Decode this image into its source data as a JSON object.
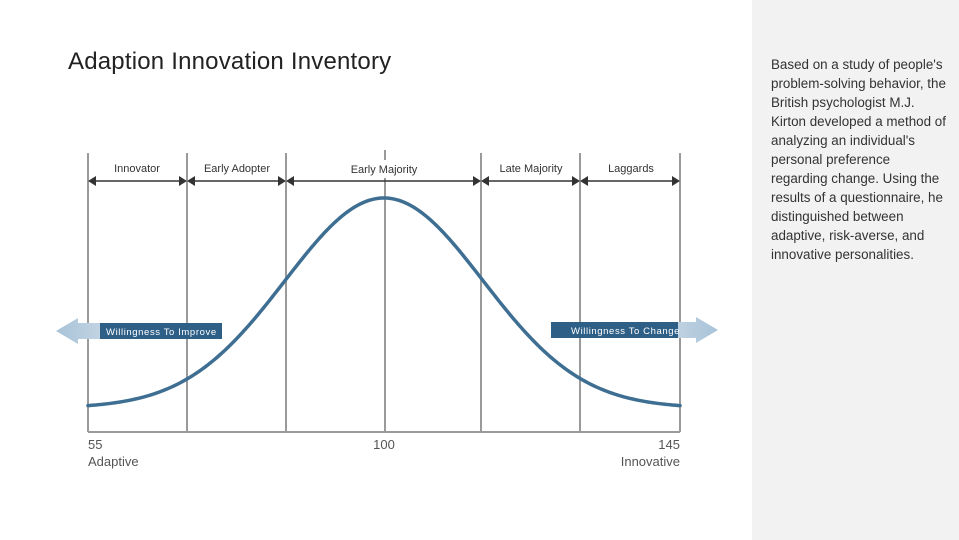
{
  "title": "Adaption Innovation Inventory",
  "segments": [
    "Innovator",
    "Early Adopter",
    "Early Majority",
    "Late Majority",
    "Laggards"
  ],
  "arrows": {
    "left": "Willingness To Improve",
    "right": "Willingness To Change"
  },
  "scale": {
    "left_value": "55",
    "left_label": "Adaptive",
    "center_value": "100",
    "right_value": "145",
    "right_label": "Innovative"
  },
  "description": "Based on a study of people's problem-solving behavior, the British psychologist M.J. Kirton developed a method of analyzing an individual's personal preference regarding change. Using the results of a questionnaire, he distinguished between adaptive, risk-averse, and innovative personalities.",
  "colors": {
    "curve": "#3e6f93",
    "arrow_fill": "#2e5f86",
    "grid": "#9a9a9a",
    "sidebar": "#f2f2f2"
  }
}
